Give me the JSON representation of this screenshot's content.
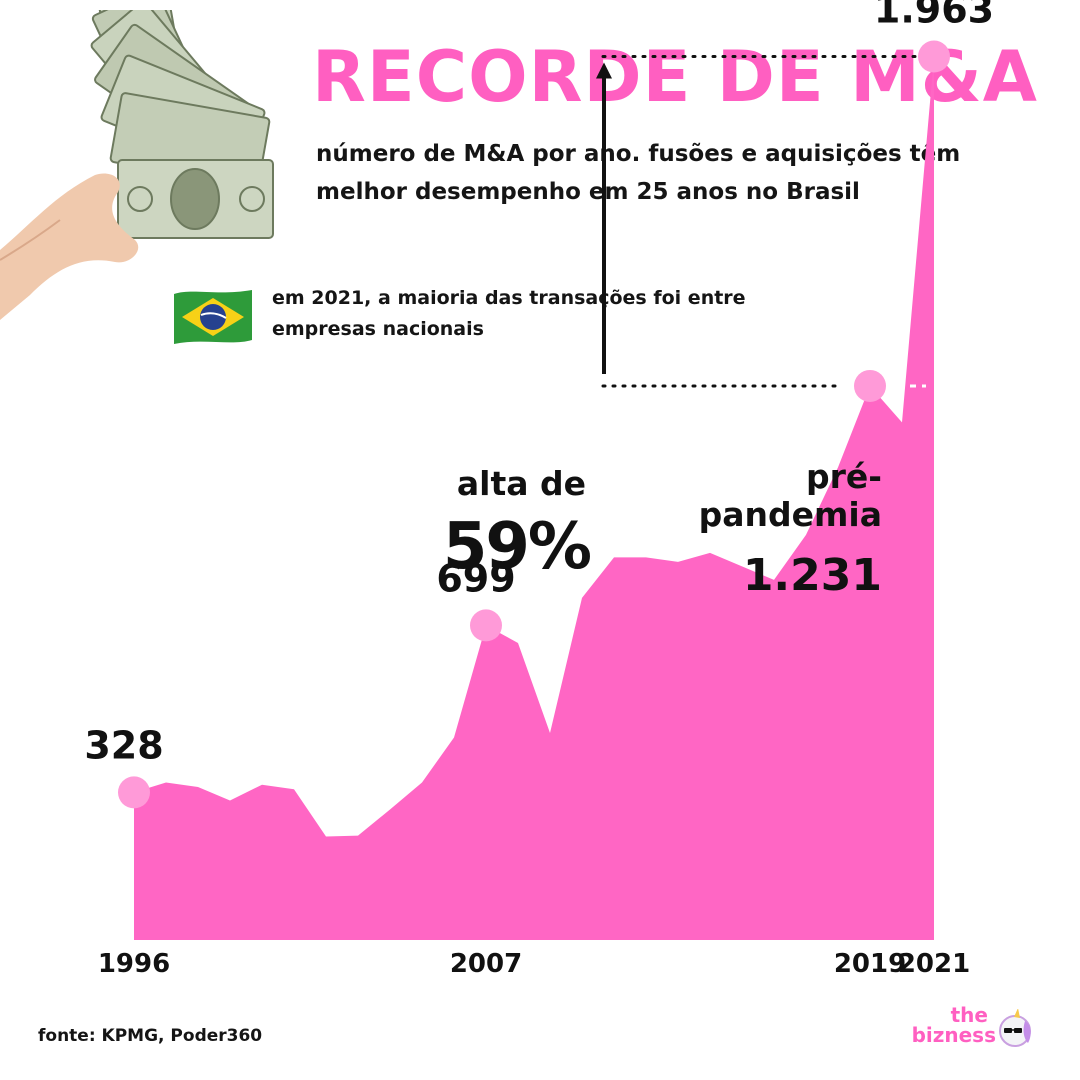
{
  "header": {
    "title": "RECORDE DE M&A",
    "subtitle": "número de M&A por ano. fusões e aquisições têm melhor desempenho em 25 anos no Brasil",
    "note": "em 2021, a maioria das transações foi entre empresas nacionais"
  },
  "colors": {
    "accent": "#ff5fc1",
    "area": "#ff66c4",
    "marker": "#ff9ad8",
    "text": "#111111"
  },
  "icons": [
    "money-hand-icon",
    "brazil-flag-icon",
    "unicorn-icon"
  ],
  "chart_data": {
    "type": "area",
    "x": [
      1996,
      1997,
      1998,
      1999,
      2000,
      2001,
      2002,
      2003,
      2004,
      2005,
      2006,
      2007,
      2008,
      2009,
      2010,
      2011,
      2012,
      2013,
      2014,
      2015,
      2016,
      2017,
      2018,
      2019,
      2020,
      2021
    ],
    "values": [
      328,
      350,
      340,
      310,
      345,
      335,
      230,
      232,
      290,
      350,
      450,
      699,
      660,
      460,
      760,
      850,
      850,
      840,
      860,
      830,
      800,
      900,
      1050,
      1231,
      1150,
      1963
    ],
    "tick_labels": [
      "1996",
      "2007",
      "2019",
      "2021"
    ],
    "highlight_points": [
      {
        "x": 1996,
        "label": "328"
      },
      {
        "x": 2007,
        "label": "699"
      },
      {
        "x": 2019,
        "label": ""
      },
      {
        "x": 2021,
        "label": "1.963"
      }
    ],
    "comparison": {
      "label": "alta de",
      "value": "59%",
      "reference_label": "pré-pandemia",
      "reference_value": "1.231",
      "from": 1231,
      "to": 1963
    },
    "ylim": [
      0,
      2000
    ],
    "grid": false,
    "legend": "none"
  },
  "footer": {
    "source": "fonte: KPMG, Poder360",
    "brand_top": "the",
    "brand_name": "bizness"
  }
}
